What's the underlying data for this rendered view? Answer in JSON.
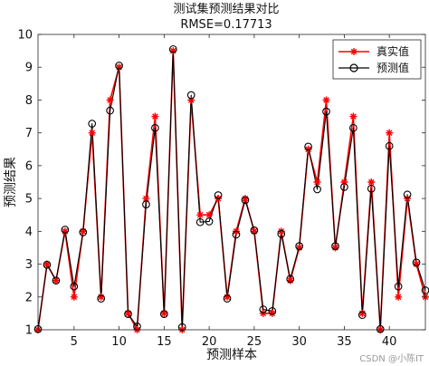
{
  "chart_data": {
    "type": "line",
    "title": "测试集预测结果对比",
    "subtitle": "RMSE=0.17713",
    "xlabel": "预测样本",
    "ylabel": "预测结果",
    "xlim": [
      1,
      44
    ],
    "ylim": [
      1,
      10
    ],
    "xticks": [
      5,
      10,
      15,
      20,
      25,
      30,
      35,
      40
    ],
    "yticks": [
      1,
      2,
      3,
      4,
      5,
      6,
      7,
      8,
      9,
      10
    ],
    "grid": false,
    "legend_position": "top-right",
    "x": [
      1,
      2,
      3,
      4,
      5,
      6,
      7,
      8,
      9,
      10,
      11,
      12,
      13,
      14,
      15,
      16,
      17,
      18,
      19,
      20,
      21,
      22,
      23,
      24,
      25,
      26,
      27,
      28,
      29,
      30,
      31,
      32,
      33,
      34,
      35,
      36,
      37,
      38,
      39,
      40,
      41,
      42,
      43,
      44
    ],
    "series": [
      {
        "name": "真实值",
        "color": "#ff0000",
        "marker": "asterisk",
        "values": [
          1,
          3,
          2.5,
          4,
          2,
          4,
          7,
          2,
          8,
          9,
          1.5,
          1,
          5,
          7.5,
          1.5,
          9.5,
          1,
          8,
          4.5,
          4.5,
          5,
          2,
          4,
          5,
          4,
          1.5,
          1.5,
          4,
          2.5,
          3.5,
          6.5,
          5.5,
          8,
          3.5,
          5.5,
          7.5,
          1.5,
          5.5,
          1,
          7,
          2,
          5,
          3,
          2
        ]
      },
      {
        "name": "预测值",
        "color": "#000000",
        "marker": "circle",
        "values": [
          1.02,
          2.98,
          2.5,
          4.05,
          2.32,
          3.97,
          7.28,
          1.95,
          7.68,
          9.05,
          1.48,
          1.1,
          4.82,
          7.15,
          1.48,
          9.55,
          1.08,
          8.15,
          4.28,
          4.3,
          5.1,
          1.95,
          3.9,
          4.95,
          4.03,
          1.62,
          1.57,
          3.92,
          2.55,
          3.55,
          6.58,
          5.28,
          7.65,
          3.55,
          5.35,
          7.15,
          1.45,
          5.3,
          1.02,
          6.6,
          2.32,
          5.12,
          3.05,
          2.2
        ]
      }
    ]
  },
  "watermark": "CSDN @小陈IT"
}
